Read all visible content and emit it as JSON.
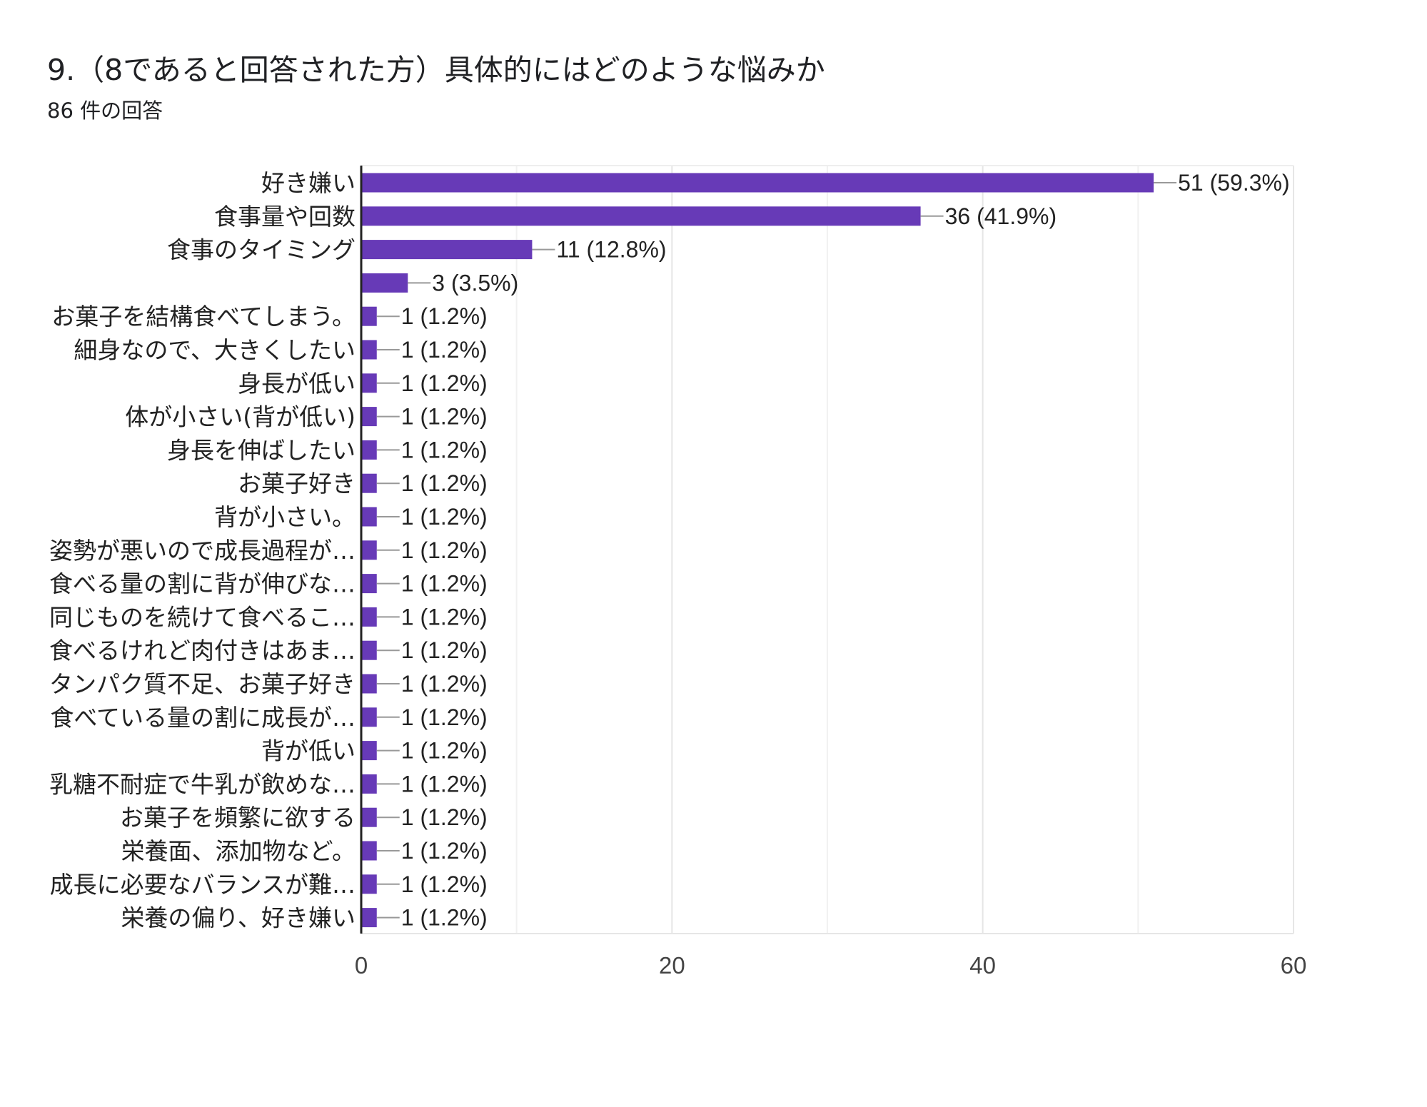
{
  "title": "9.（8であると回答された方）具体的にはどのような悩みか",
  "response_count": "86 件の回答",
  "colors": {
    "bar": "#673ab7",
    "grid": "#e6e6e6",
    "axis": "#222222",
    "leader": "#999999"
  },
  "chart_data": {
    "type": "bar",
    "orientation": "horizontal",
    "categories": [
      "好き嫌い",
      "食事量や回数",
      "食事のタイミング",
      "",
      "お菓子を結構食べてしまう。",
      "細身なので、大きくしたい",
      "身長が低い",
      "体が小さい(背が低い)",
      "身長を伸ばしたい",
      "お菓子好き",
      "背が小さい。",
      "姿勢が悪いので成長過程が…",
      "食べる量の割に背が伸びな…",
      "同じものを続けて食べるこ…",
      "食べるけれど肉付きはあま…",
      "タンパク質不足、お菓子好き",
      "食べている量の割に成長が…",
      "背が低い",
      "乳糖不耐症で牛乳が飲めな…",
      "お菓子を頻繁に欲する",
      "栄養面、添加物など。",
      "成長に必要なバランスが難…",
      "栄養の偏り、好き嫌い"
    ],
    "values": [
      51,
      36,
      11,
      3,
      1,
      1,
      1,
      1,
      1,
      1,
      1,
      1,
      1,
      1,
      1,
      1,
      1,
      1,
      1,
      1,
      1,
      1,
      1
    ],
    "value_labels": [
      "51 (59.3%)",
      "36 (41.9%)",
      "11 (12.8%)",
      "3 (3.5%)",
      "1 (1.2%)",
      "1 (1.2%)",
      "1 (1.2%)",
      "1 (1.2%)",
      "1 (1.2%)",
      "1 (1.2%)",
      "1 (1.2%)",
      "1 (1.2%)",
      "1 (1.2%)",
      "1 (1.2%)",
      "1 (1.2%)",
      "1 (1.2%)",
      "1 (1.2%)",
      "1 (1.2%)",
      "1 (1.2%)",
      "1 (1.2%)",
      "1 (1.2%)",
      "1 (1.2%)",
      "1 (1.2%)"
    ],
    "xlim": [
      0,
      60
    ],
    "x_ticks": [
      0,
      20,
      40,
      60
    ],
    "x_minor_gridlines": [
      10,
      30,
      50
    ],
    "grid": true,
    "legend": "none"
  }
}
